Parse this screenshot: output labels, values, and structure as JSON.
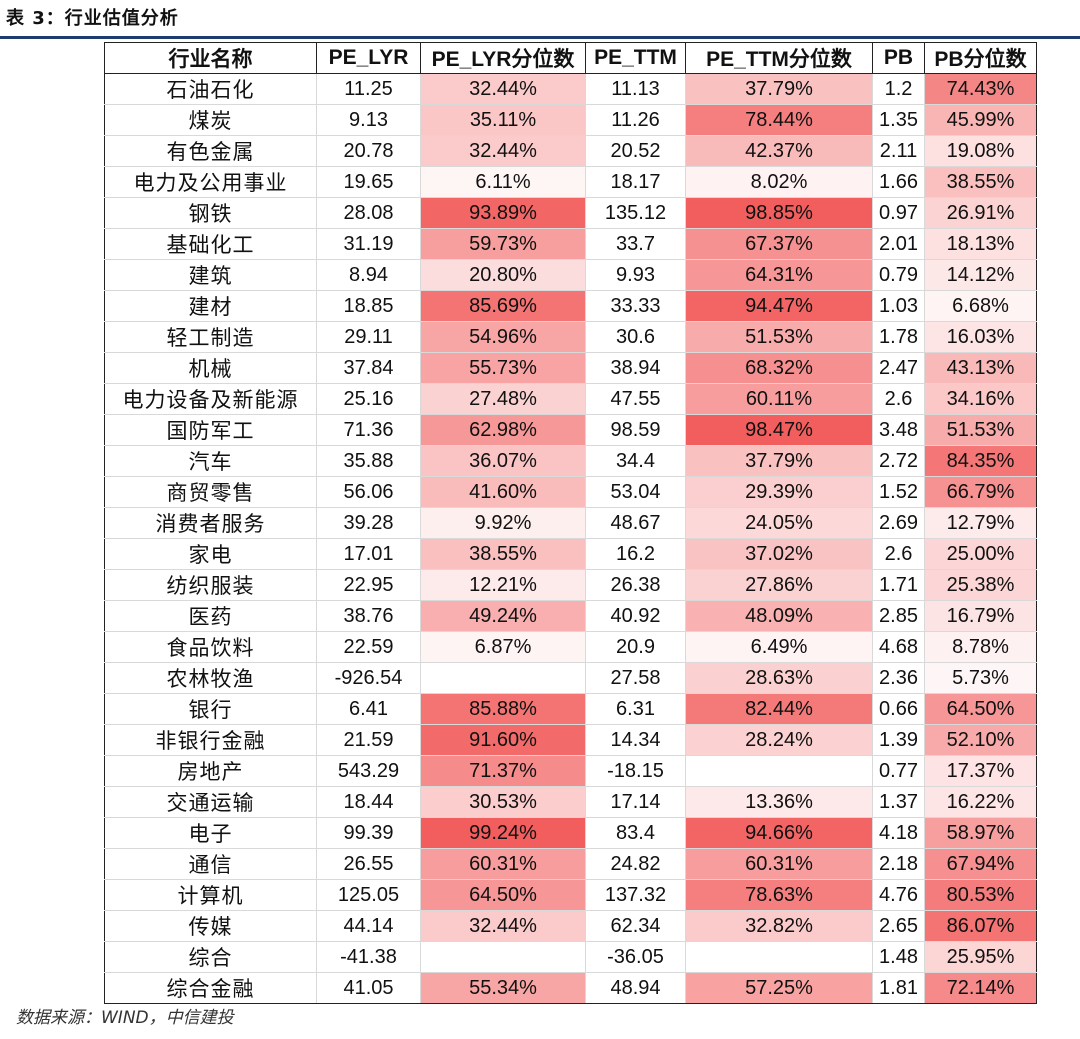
{
  "caption": "表 3：行业估值分析",
  "source": "数据来源：WIND，中信建投",
  "colors": {
    "heat_max": "#f25c5c",
    "heat_min": "#ffffff",
    "rule": "#1f3b6e"
  },
  "table": {
    "headers": [
      "行业名称",
      "PE_LYR",
      "PE_LYR分位数",
      "PE_TTM",
      "PE_TTM分位数",
      "PB",
      "PB分位数"
    ],
    "rows": [
      [
        "石油石化",
        "11.25",
        "32.44%",
        "11.13",
        "37.79%",
        "1.2",
        "74.43%"
      ],
      [
        "煤炭",
        "9.13",
        "35.11%",
        "11.26",
        "78.44%",
        "1.35",
        "45.99%"
      ],
      [
        "有色金属",
        "20.78",
        "32.44%",
        "20.52",
        "42.37%",
        "2.11",
        "19.08%"
      ],
      [
        "电力及公用事业",
        "19.65",
        "6.11%",
        "18.17",
        "8.02%",
        "1.66",
        "38.55%"
      ],
      [
        "钢铁",
        "28.08",
        "93.89%",
        "135.12",
        "98.85%",
        "0.97",
        "26.91%"
      ],
      [
        "基础化工",
        "31.19",
        "59.73%",
        "33.7",
        "67.37%",
        "2.01",
        "18.13%"
      ],
      [
        "建筑",
        "8.94",
        "20.80%",
        "9.93",
        "64.31%",
        "0.79",
        "14.12%"
      ],
      [
        "建材",
        "18.85",
        "85.69%",
        "33.33",
        "94.47%",
        "1.03",
        "6.68%"
      ],
      [
        "轻工制造",
        "29.11",
        "54.96%",
        "30.6",
        "51.53%",
        "1.78",
        "16.03%"
      ],
      [
        "机械",
        "37.84",
        "55.73%",
        "38.94",
        "68.32%",
        "2.47",
        "43.13%"
      ],
      [
        "电力设备及新能源",
        "25.16",
        "27.48%",
        "47.55",
        "60.11%",
        "2.6",
        "34.16%"
      ],
      [
        "国防军工",
        "71.36",
        "62.98%",
        "98.59",
        "98.47%",
        "3.48",
        "51.53%"
      ],
      [
        "汽车",
        "35.88",
        "36.07%",
        "34.4",
        "37.79%",
        "2.72",
        "84.35%"
      ],
      [
        "商贸零售",
        "56.06",
        "41.60%",
        "53.04",
        "29.39%",
        "1.52",
        "66.79%"
      ],
      [
        "消费者服务",
        "39.28",
        "9.92%",
        "48.67",
        "24.05%",
        "2.69",
        "12.79%"
      ],
      [
        "家电",
        "17.01",
        "38.55%",
        "16.2",
        "37.02%",
        "2.6",
        "25.00%"
      ],
      [
        "纺织服装",
        "22.95",
        "12.21%",
        "26.38",
        "27.86%",
        "1.71",
        "25.38%"
      ],
      [
        "医药",
        "38.76",
        "49.24%",
        "40.92",
        "48.09%",
        "2.85",
        "16.79%"
      ],
      [
        "食品饮料",
        "22.59",
        "6.87%",
        "20.9",
        "6.49%",
        "4.68",
        "8.78%"
      ],
      [
        "农林牧渔",
        "-926.54",
        "",
        "27.58",
        "28.63%",
        "2.36",
        "5.73%"
      ],
      [
        "银行",
        "6.41",
        "85.88%",
        "6.31",
        "82.44%",
        "0.66",
        "64.50%"
      ],
      [
        "非银行金融",
        "21.59",
        "91.60%",
        "14.34",
        "28.24%",
        "1.39",
        "52.10%"
      ],
      [
        "房地产",
        "543.29",
        "71.37%",
        "-18.15",
        "",
        "0.77",
        "17.37%"
      ],
      [
        "交通运输",
        "18.44",
        "30.53%",
        "17.14",
        "13.36%",
        "1.37",
        "16.22%"
      ],
      [
        "电子",
        "99.39",
        "99.24%",
        "83.4",
        "94.66%",
        "4.18",
        "58.97%"
      ],
      [
        "通信",
        "26.55",
        "60.31%",
        "24.82",
        "60.31%",
        "2.18",
        "67.94%"
      ],
      [
        "计算机",
        "125.05",
        "64.50%",
        "137.32",
        "78.63%",
        "4.76",
        "80.53%"
      ],
      [
        "传媒",
        "44.14",
        "32.44%",
        "62.34",
        "32.82%",
        "2.65",
        "86.07%"
      ],
      [
        "综合",
        "-41.38",
        "",
        "-36.05",
        "",
        "1.48",
        "25.95%"
      ],
      [
        "综合金融",
        "41.05",
        "55.34%",
        "48.94",
        "57.25%",
        "1.81",
        "72.14%"
      ]
    ]
  }
}
